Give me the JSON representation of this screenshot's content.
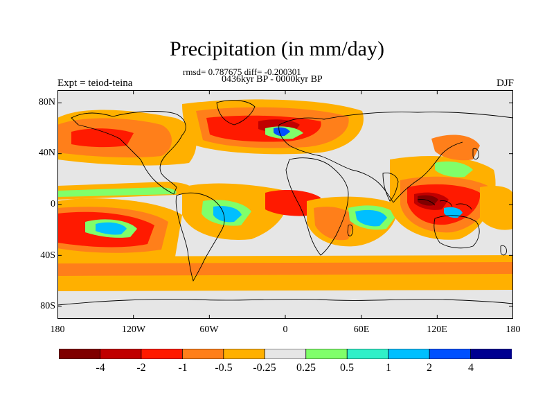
{
  "title": "Precipitation (in mm/day)",
  "stats": "rmsd= 0.787675 diff= -0.200301",
  "period": "0436kyr BP - 0000kyr BP",
  "left_label": "Expt = teiod-teina",
  "right_label": "DJF",
  "map": {
    "lon_range": [
      -180,
      180
    ],
    "lat_range": [
      -90,
      90
    ],
    "land_color": "#000000",
    "background_color": "#e6e6e6",
    "lon_ticks": [
      {
        "value": -180,
        "label": "180"
      },
      {
        "value": -120,
        "label": "120W"
      },
      {
        "value": -60,
        "label": "60W"
      },
      {
        "value": 0,
        "label": "0"
      },
      {
        "value": 60,
        "label": "60E"
      },
      {
        "value": 120,
        "label": "120E"
      },
      {
        "value": 180,
        "label": "180"
      }
    ],
    "lat_ticks": [
      {
        "value": 80,
        "label": "80N"
      },
      {
        "value": 40,
        "label": "40N"
      },
      {
        "value": 0,
        "label": "0"
      },
      {
        "value": -40,
        "label": "40S"
      },
      {
        "value": -80,
        "label": "80S"
      }
    ]
  },
  "colorbar": {
    "colors": [
      "#7f0000",
      "#c00000",
      "#ff1a00",
      "#ff7f1a",
      "#ffb000",
      "#e6e6e6",
      "#80ff6a",
      "#30f0c8",
      "#00bfff",
      "#0050ff",
      "#000090"
    ],
    "labels": [
      "-4",
      "-2",
      "-1",
      "-0.5",
      "-0.25",
      "0.25",
      "0.5",
      "1",
      "2",
      "4"
    ]
  }
}
